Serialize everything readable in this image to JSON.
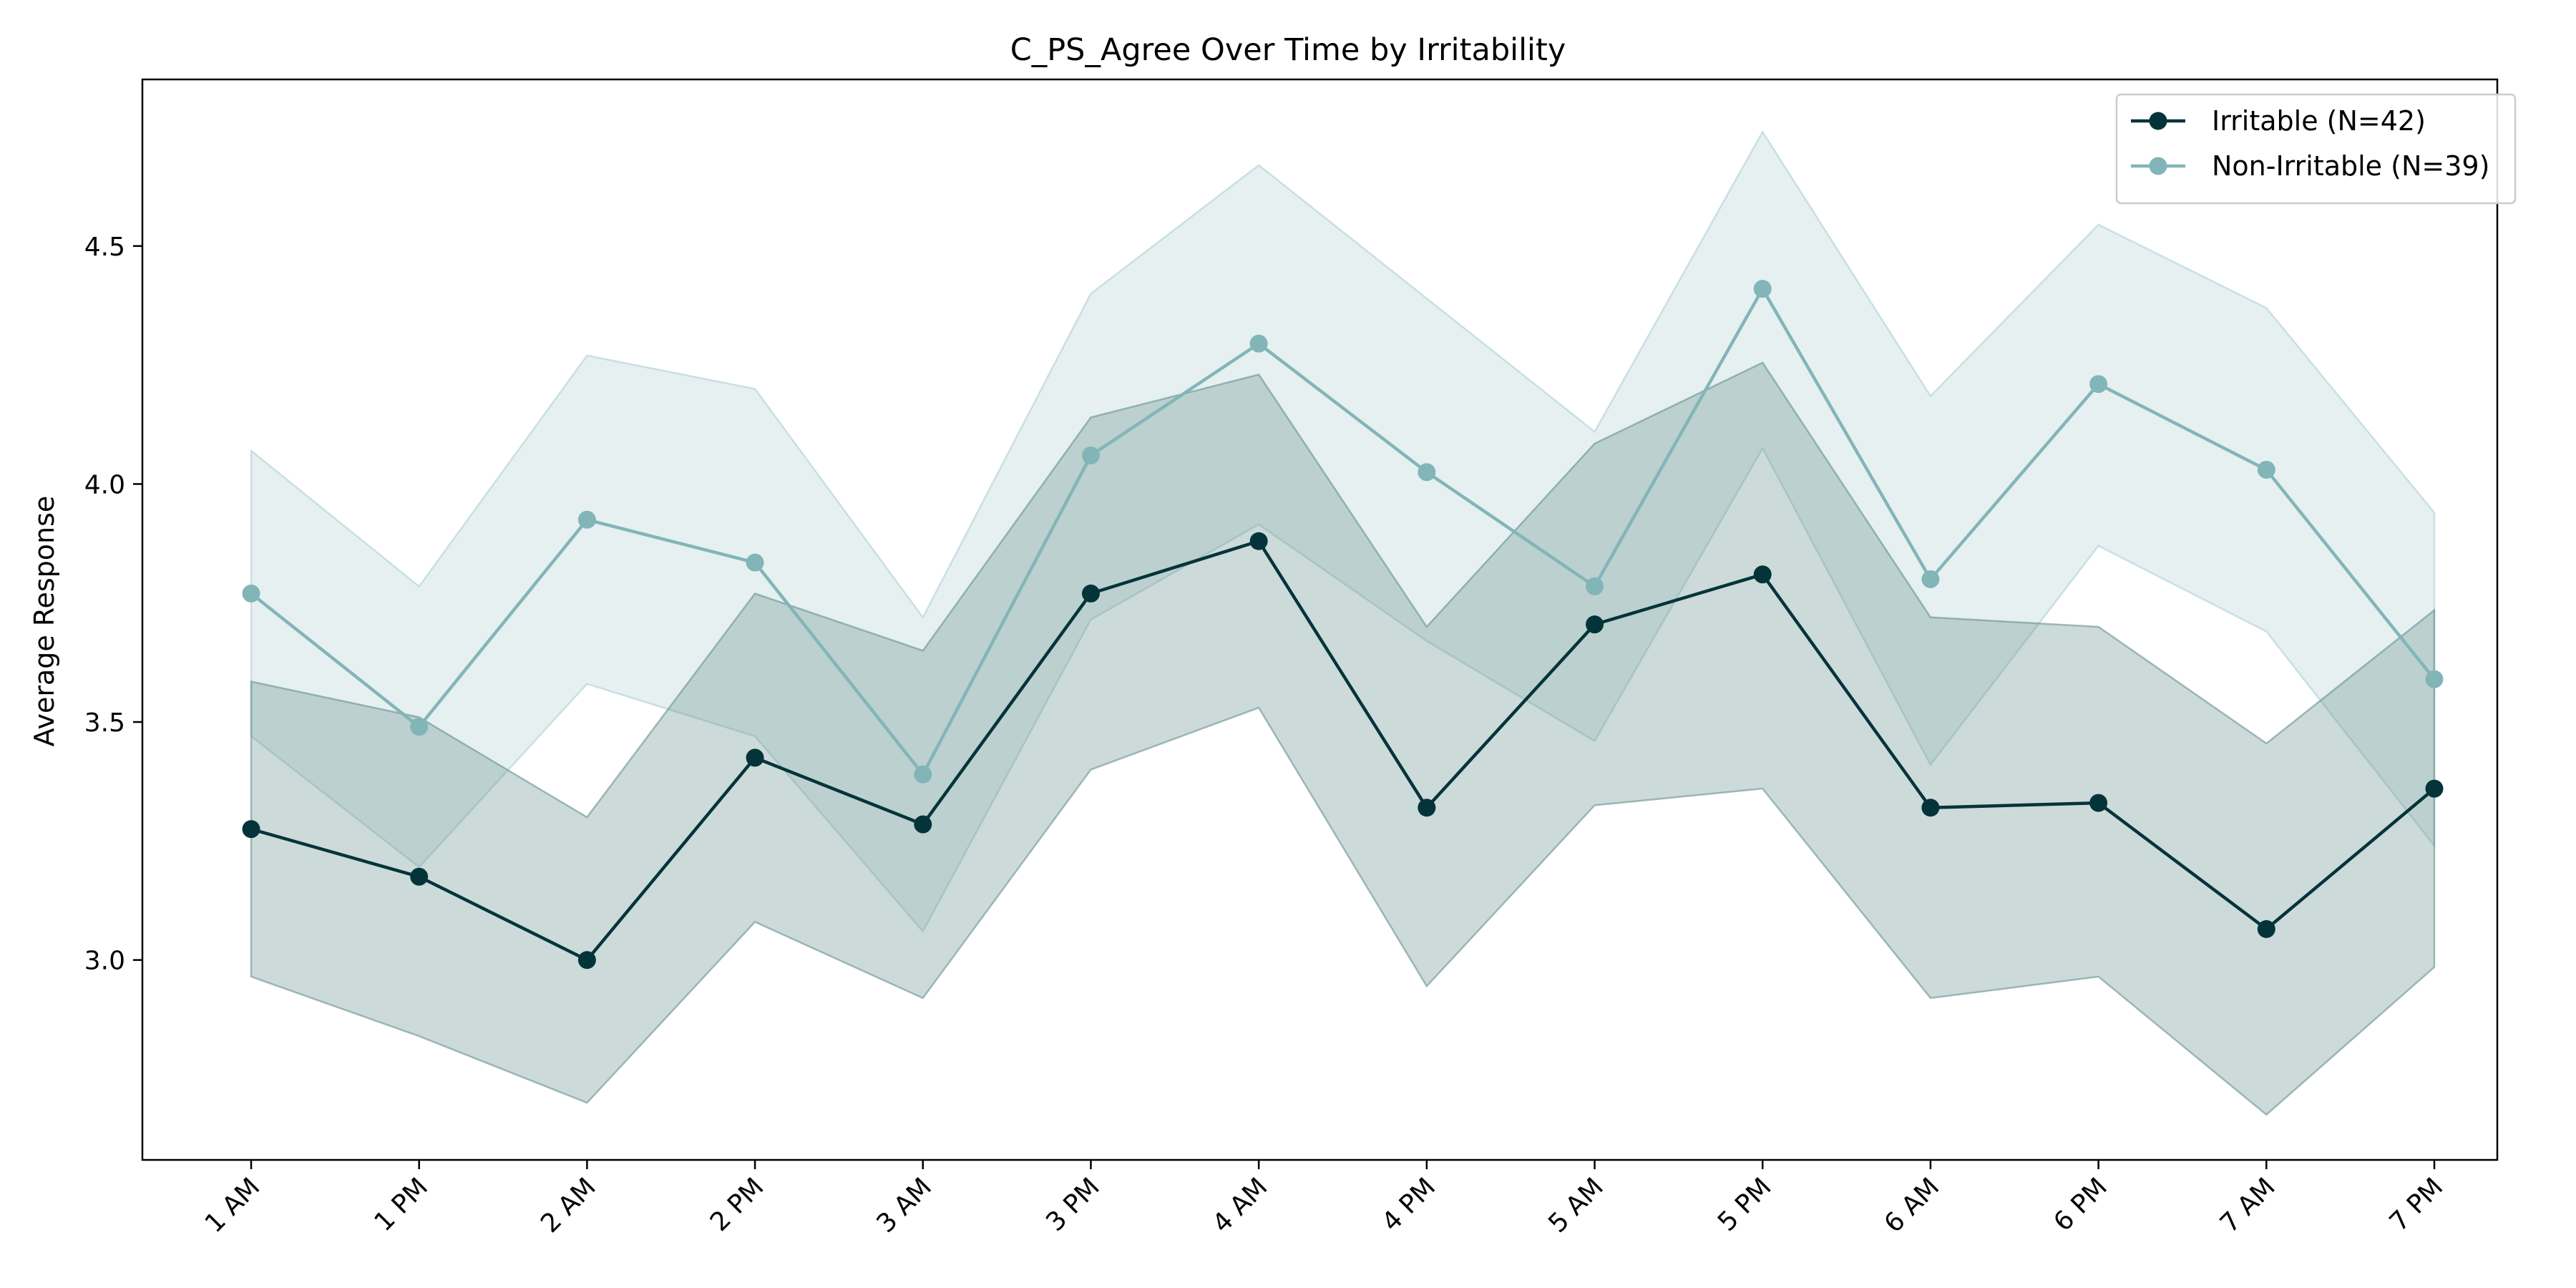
{
  "chart_data": {
    "type": "line",
    "title": "C_PS_Agree Over Time by Irritability",
    "xlabel": "",
    "ylabel": "Average Response",
    "categories": [
      "1 AM",
      "1 PM",
      "2 AM",
      "2 PM",
      "3 AM",
      "3 PM",
      "4 AM",
      "4 PM",
      "5 AM",
      "5 PM",
      "6 AM",
      "6 PM",
      "7 AM",
      "7 PM"
    ],
    "ylim": [
      2.58,
      4.85
    ],
    "yticks": [
      "3.0",
      "3.5",
      "4.0",
      "4.5"
    ],
    "grid": false,
    "legend_position": "top-right",
    "series": [
      {
        "name": "Irritable (N=42)",
        "color": "#04343a",
        "band_color": "#5f8b8a",
        "values": [
          3.275,
          3.175,
          3.0,
          3.425,
          3.285,
          3.77,
          3.88,
          3.32,
          3.705,
          3.81,
          3.32,
          3.33,
          3.065,
          3.36
        ],
        "lower": [
          2.965,
          2.84,
          2.7,
          3.08,
          2.92,
          3.4,
          3.53,
          2.945,
          3.325,
          3.36,
          2.92,
          2.965,
          2.675,
          2.985
        ],
        "upper": [
          3.585,
          3.51,
          3.3,
          3.77,
          3.65,
          4.14,
          4.23,
          3.7,
          4.085,
          4.255,
          3.72,
          3.7,
          3.455,
          3.735
        ]
      },
      {
        "name": "Non-Irritable (N=39)",
        "color": "#82b5b8",
        "band_color": "#82b5b8",
        "values": [
          3.77,
          3.49,
          3.925,
          3.835,
          3.39,
          4.06,
          4.295,
          4.025,
          3.785,
          4.41,
          3.8,
          4.21,
          4.03,
          3.59
        ],
        "lower": [
          3.47,
          3.195,
          3.58,
          3.47,
          3.06,
          3.715,
          3.915,
          3.67,
          3.46,
          4.075,
          3.41,
          3.87,
          3.69,
          3.24
        ],
        "upper": [
          4.07,
          3.785,
          4.27,
          4.2,
          3.72,
          4.4,
          4.67,
          4.39,
          4.11,
          4.74,
          4.185,
          4.545,
          4.37,
          3.94
        ]
      }
    ]
  }
}
